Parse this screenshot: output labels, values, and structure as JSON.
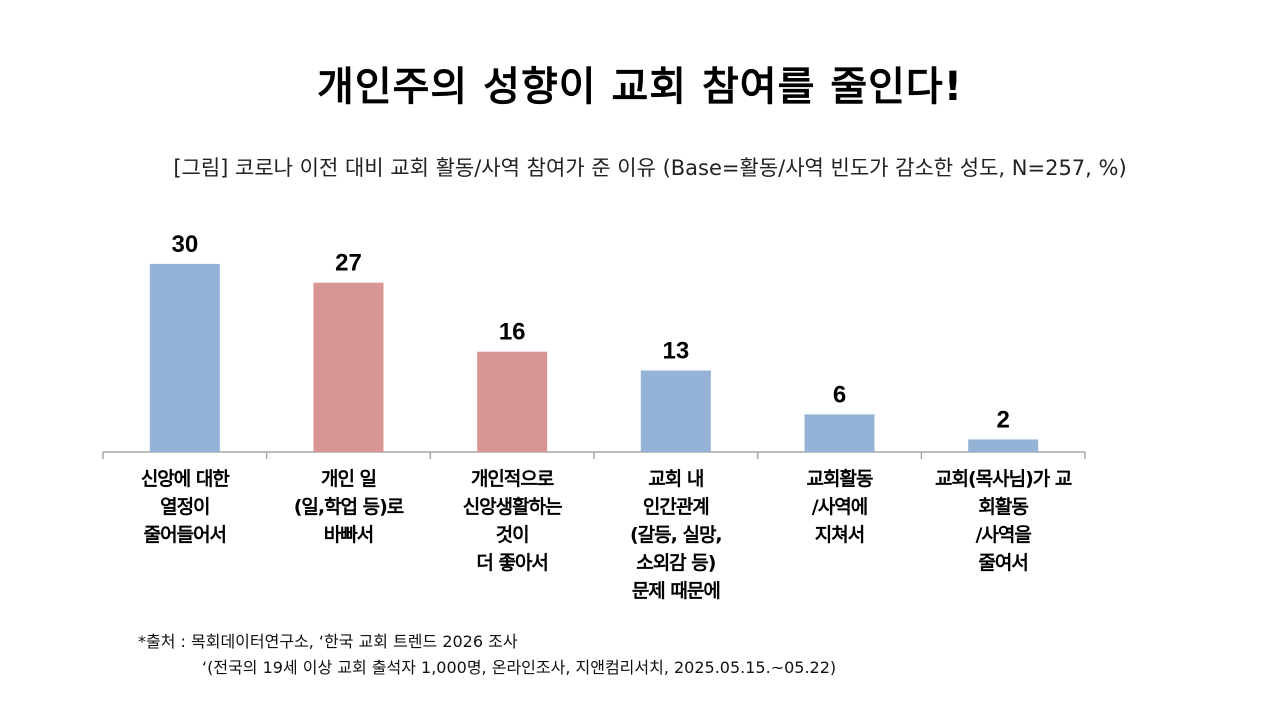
{
  "page": {
    "title": "개인주의 성향이 교회 참여를 줄인다!",
    "subtitle": "[그림] 코로나 이전 대비 교회 활동/사역 참여가 준 이유 (Base=활동/사역 빈도가 감소한 성도, N=257, %)",
    "source_line1": "*출처 : 목회데이터연구소, ‘한국 교회 트렌드 2026 조사",
    "source_line2": "‘(전국의 19세 이상 교회 출석자 1,000명, 온라인조사, 지앤컴리서치, 2025.05.15.~05.22)"
  },
  "colors": {
    "blue": "#95b3d7",
    "red": "#d99594",
    "axis": "#a6a6a6"
  },
  "chart_data": {
    "type": "bar",
    "title": "",
    "xlabel": "",
    "ylabel": "",
    "ylim": [
      0,
      30
    ],
    "grid": false,
    "legend": "none",
    "categories": [
      "신앙에 대한\n열정이\n줄어들어서",
      "개인 일\n(일,학업 등)로\n바빠서",
      "개인적으로\n신앙생활하는\n것이\n더 좋아서",
      "교회 내\n인간관계\n(갈등, 실망,\n소외감 등)\n문제 때문에",
      "교회활동\n/사역에\n지쳐서",
      "교회(목사님)가 교\n회활동\n/사역을\n줄여서"
    ],
    "values": [
      30,
      27,
      16,
      13,
      6,
      2
    ],
    "bar_colors": [
      "#95b3d7",
      "#d99594",
      "#d99594",
      "#95b3d7",
      "#95b3d7",
      "#95b3d7"
    ]
  }
}
